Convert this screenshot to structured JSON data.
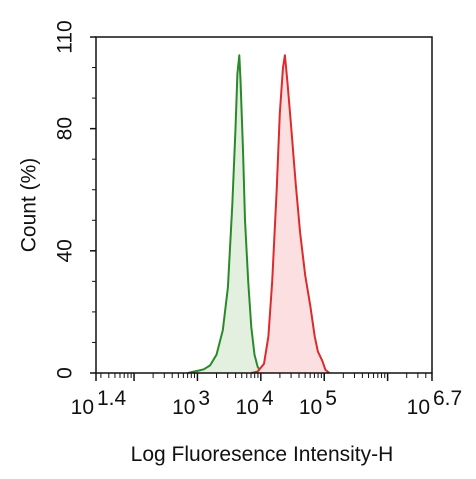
{
  "chart_data": {
    "type": "area",
    "title": "",
    "xlabel": "Log Fluoresence Intensity-H",
    "ylabel": "Count  (%)",
    "x_scale": "log10",
    "xlim": [
      1.4,
      6.7
    ],
    "ylim": [
      0,
      110
    ],
    "grid": false,
    "legend": "none",
    "x_ticks": [
      {
        "base": "10",
        "exp": "1.4"
      },
      {
        "base": "10",
        "exp": "3"
      },
      {
        "base": "10",
        "exp": "4"
      },
      {
        "base": "10",
        "exp": "5"
      },
      {
        "base": "10",
        "exp": "6.7"
      }
    ],
    "y_ticks": [
      "0",
      "40",
      "80",
      "110"
    ],
    "series": [
      {
        "color": "#2a8a2a",
        "fill": "#e3f0df",
        "points": [
          [
            2.85,
            0
          ],
          [
            2.95,
            0.5
          ],
          [
            3.0,
            0.7
          ],
          [
            3.1,
            1.2
          ],
          [
            3.2,
            2.5
          ],
          [
            3.3,
            6
          ],
          [
            3.4,
            14
          ],
          [
            3.48,
            28
          ],
          [
            3.55,
            55
          ],
          [
            3.6,
            80
          ],
          [
            3.63,
            98
          ],
          [
            3.66,
            104
          ],
          [
            3.68,
            96
          ],
          [
            3.72,
            72
          ],
          [
            3.75,
            50
          ],
          [
            3.8,
            30
          ],
          [
            3.85,
            15
          ],
          [
            3.9,
            6
          ],
          [
            3.95,
            2
          ],
          [
            4.0,
            0.5
          ],
          [
            4.05,
            0
          ]
        ]
      },
      {
        "color": "#dd2a2a",
        "fill": "#fce0e1",
        "points": [
          [
            3.85,
            0
          ],
          [
            3.95,
            0.5
          ],
          [
            4.05,
            3
          ],
          [
            4.12,
            12
          ],
          [
            4.18,
            30
          ],
          [
            4.25,
            60
          ],
          [
            4.3,
            85
          ],
          [
            4.35,
            100
          ],
          [
            4.38,
            104
          ],
          [
            4.42,
            95
          ],
          [
            4.48,
            80
          ],
          [
            4.55,
            62
          ],
          [
            4.62,
            46
          ],
          [
            4.7,
            32
          ],
          [
            4.78,
            22
          ],
          [
            4.85,
            12
          ],
          [
            4.9,
            7
          ],
          [
            4.97,
            4
          ],
          [
            5.02,
            1
          ],
          [
            5.08,
            0
          ]
        ]
      }
    ]
  }
}
